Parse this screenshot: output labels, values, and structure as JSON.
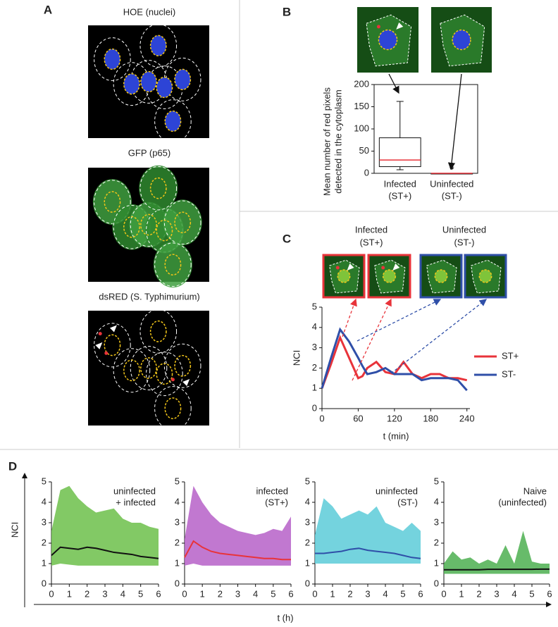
{
  "panels": {
    "A": {
      "label": "A",
      "captions": [
        "HOE (nuclei)",
        "GFP (p65)",
        "dsRED (S. Typhimurium)"
      ]
    },
    "B": {
      "label": "B"
    },
    "C": {
      "label": "C",
      "groups": [
        [
          "Infected",
          "(ST+)"
        ],
        [
          "Uninfected",
          "(ST-)"
        ]
      ]
    },
    "D": {
      "label": "D",
      "ylabel": "NCI",
      "xlabel": "t (h)"
    }
  },
  "chart_data": [
    {
      "type": "box",
      "ylabel": [
        "Mean number of red pixels",
        "detected in the cytoplasm"
      ],
      "categories": [
        "Infected",
        "Uninfected"
      ],
      "category_sublabels": [
        "(ST+)",
        "(ST-)"
      ],
      "boxes": [
        {
          "min": 8,
          "q1": 15,
          "median": 30,
          "q3": 80,
          "max": 162,
          "color": "#e8333a"
        },
        {
          "min": 0,
          "q1": 0,
          "median": 0,
          "q3": 0,
          "max": 0,
          "outliers": [
            3
          ],
          "color": "#e8333a"
        }
      ],
      "ylim": [
        0,
        200
      ],
      "yticks": [
        0,
        50,
        100,
        150,
        200
      ]
    },
    {
      "type": "line",
      "xlabel": "t (min)",
      "ylabel": "NCI",
      "x": [
        0,
        15,
        30,
        45,
        60,
        67,
        75,
        90,
        105,
        120,
        135,
        150,
        165,
        180,
        195,
        210,
        225,
        240
      ],
      "series": [
        {
          "name": "ST+",
          "color": "#e8333a",
          "values": [
            1,
            2.2,
            3.5,
            2.5,
            1.5,
            1.6,
            2.0,
            2.3,
            1.8,
            1.7,
            2.3,
            1.7,
            1.5,
            1.7,
            1.7,
            1.5,
            1.5,
            1.4
          ]
        },
        {
          "name": "ST-",
          "color": "#2f4fa8",
          "values": [
            1,
            2.5,
            3.9,
            3.3,
            2.5,
            2.1,
            1.7,
            1.8,
            2.0,
            1.7,
            1.7,
            1.7,
            1.4,
            1.5,
            1.5,
            1.5,
            1.4,
            0.9
          ]
        }
      ],
      "xlim": [
        0,
        245
      ],
      "xticks": [
        0,
        60,
        120,
        180,
        240
      ],
      "ylim": [
        0,
        5
      ],
      "yticks": [
        0,
        1,
        2,
        3,
        4,
        5
      ]
    },
    {
      "type": "line",
      "annotation": [
        "uninfected",
        "+ infected"
      ],
      "x": [
        0,
        0.5,
        1,
        1.5,
        2,
        2.5,
        3,
        3.5,
        4,
        4.5,
        5,
        5.5,
        6
      ],
      "band": {
        "color": "#6cc04a",
        "lower": [
          0.9,
          1.0,
          0.95,
          0.9,
          0.9,
          0.9,
          0.9,
          0.9,
          0.9,
          0.9,
          0.9,
          0.9,
          0.9
        ],
        "upper": [
          2.6,
          4.6,
          4.8,
          4.2,
          3.8,
          3.5,
          3.6,
          3.7,
          3.2,
          3.0,
          3.0,
          2.8,
          2.7
        ]
      },
      "series": [
        {
          "color": "#111111",
          "values": [
            1.4,
            1.8,
            1.75,
            1.7,
            1.8,
            1.75,
            1.65,
            1.55,
            1.5,
            1.45,
            1.35,
            1.3,
            1.25
          ]
        }
      ],
      "xlim": [
        0,
        6
      ],
      "xticks": [
        0,
        1,
        2,
        3,
        4,
        5,
        6
      ],
      "ylim": [
        0,
        5
      ],
      "yticks": [
        0,
        1,
        2,
        3,
        4,
        5
      ]
    },
    {
      "type": "line",
      "annotation": [
        "infected",
        "(ST+)"
      ],
      "x": [
        0,
        0.5,
        1,
        1.5,
        2,
        2.5,
        3,
        3.5,
        4,
        4.5,
        5,
        5.5,
        6
      ],
      "band": {
        "color": "#b660c8",
        "lower": [
          0.9,
          1.0,
          0.9,
          0.9,
          0.9,
          0.9,
          0.9,
          0.9,
          0.9,
          0.9,
          0.9,
          0.9,
          0.9
        ],
        "upper": [
          2.2,
          4.8,
          4.0,
          3.4,
          3.0,
          2.8,
          2.6,
          2.5,
          2.4,
          2.5,
          2.7,
          2.6,
          3.3
        ]
      },
      "series": [
        {
          "color": "#e8333a",
          "values": [
            1.3,
            2.1,
            1.8,
            1.6,
            1.5,
            1.45,
            1.4,
            1.35,
            1.3,
            1.25,
            1.25,
            1.2,
            1.2
          ]
        }
      ],
      "xlim": [
        0,
        6
      ],
      "xticks": [
        0,
        1,
        2,
        3,
        4,
        5,
        6
      ],
      "ylim": [
        0,
        5
      ],
      "yticks": [
        0,
        1,
        2,
        3,
        4,
        5
      ]
    },
    {
      "type": "line",
      "annotation": [
        "uninfected",
        "(ST-)"
      ],
      "x": [
        0,
        0.5,
        1,
        1.5,
        2,
        2.5,
        3,
        3.5,
        4,
        4.5,
        5,
        5.5,
        6
      ],
      "band": {
        "color": "#5ccbd8",
        "lower": [
          1.0,
          1.0,
          1.0,
          1.0,
          1.0,
          1.0,
          1.0,
          1.0,
          1.0,
          1.0,
          1.0,
          1.0,
          1.0
        ],
        "upper": [
          2.4,
          4.2,
          3.8,
          3.2,
          3.4,
          3.6,
          3.4,
          3.8,
          3.0,
          2.8,
          2.6,
          3.0,
          2.6
        ]
      },
      "series": [
        {
          "color": "#2f4fa8",
          "values": [
            1.5,
            1.5,
            1.55,
            1.6,
            1.7,
            1.75,
            1.65,
            1.6,
            1.55,
            1.5,
            1.4,
            1.3,
            1.25
          ]
        }
      ],
      "xlim": [
        0,
        6
      ],
      "xticks": [
        0,
        1,
        2,
        3,
        4,
        5,
        6
      ],
      "ylim": [
        0,
        5
      ],
      "yticks": [
        0,
        1,
        2,
        3,
        4,
        5
      ]
    },
    {
      "type": "line",
      "annotation": [
        "Naive",
        "(uninfected)"
      ],
      "x": [
        0,
        0.5,
        1,
        1.5,
        2,
        2.5,
        3,
        3.5,
        4,
        4.5,
        5,
        5.5,
        6
      ],
      "band": {
        "color": "#4caf50",
        "lower": [
          0.5,
          0.5,
          0.5,
          0.5,
          0.5,
          0.5,
          0.5,
          0.5,
          0.5,
          0.5,
          0.5,
          0.5,
          0.5
        ],
        "upper": [
          1.0,
          1.6,
          1.2,
          1.3,
          1.0,
          1.2,
          1.0,
          1.9,
          1.0,
          2.6,
          1.1,
          1.0,
          1.0
        ]
      },
      "series": [
        {
          "color": "#111111",
          "values": [
            0.7,
            0.7,
            0.7,
            0.7,
            0.7,
            0.72,
            0.72,
            0.72,
            0.72,
            0.72,
            0.72,
            0.73,
            0.73
          ]
        }
      ],
      "xlim": [
        0,
        6
      ],
      "xticks": [
        0,
        1,
        2,
        3,
        4,
        5,
        6
      ],
      "ylim": [
        0,
        5
      ],
      "yticks": [
        0,
        1,
        2,
        3,
        4,
        5
      ]
    }
  ]
}
